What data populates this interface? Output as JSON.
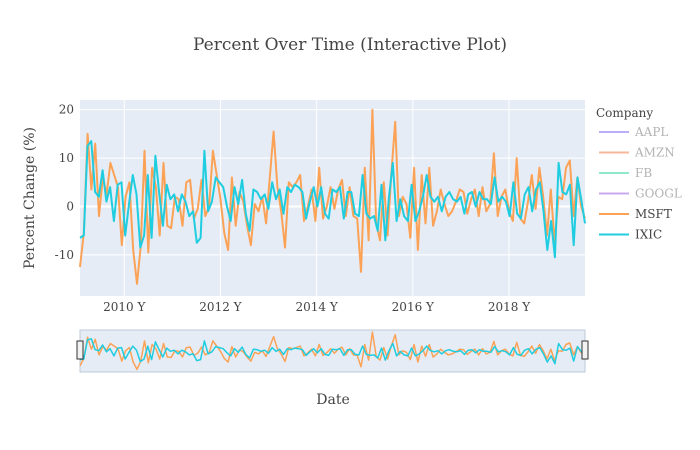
{
  "chart_data": {
    "type": "line",
    "title": "Percent Over Time (Interactive Plot)",
    "xlabel": "Date",
    "ylabel": "Percent Change (%)",
    "x_ticks": [
      "2010 Y",
      "2012 Y",
      "2014 Y",
      "2016 Y",
      "2018 Y"
    ],
    "x_tick_values": [
      2010,
      2012,
      2014,
      2016,
      2018
    ],
    "xlim": [
      2009.08,
      2019.58
    ],
    "y_ticks": [
      -10,
      0,
      10,
      20
    ],
    "ylim": [
      -18.5,
      22
    ],
    "legend": {
      "title": "Company",
      "position": "right",
      "items": [
        {
          "name": "AAPL",
          "color": "#b9aef7",
          "faded": true
        },
        {
          "name": "AMZN",
          "color": "#f7b79a",
          "faded": true
        },
        {
          "name": "FB",
          "color": "#8ee8c9",
          "faded": true
        },
        {
          "name": "GOOGL",
          "color": "#c9a8ee",
          "faded": true
        },
        {
          "name": "MSFT",
          "color": "#fca257",
          "faded": false
        },
        {
          "name": "IXIC",
          "color": "#1fcde0",
          "faded": false
        }
      ]
    },
    "series": [
      {
        "name": "MSFT",
        "color": "#fca257",
        "values": [
          -12.5,
          -5.5,
          15.0,
          3.5,
          13.0,
          -2.0,
          6.0,
          2.5,
          9.0,
          6.5,
          4.0,
          -8.0,
          2.0,
          5.0,
          -9.0,
          -16.0,
          -8.0,
          11.5,
          -9.5,
          8.0,
          4.0,
          -6.0,
          9.0,
          -4.0,
          -4.5,
          2.0,
          1.5,
          -4.0,
          5.0,
          5.5,
          -2.5,
          -0.5,
          5.5,
          -2.0,
          0.0,
          11.5,
          6.5,
          1.5,
          -5.5,
          -9.0,
          6.0,
          -4.0,
          3.0,
          1.0,
          -4.0,
          -8.0,
          0.5,
          -1.0,
          2.0,
          -3.5,
          6.0,
          15.5,
          4.0,
          -1.0,
          -8.5,
          5.0,
          4.0,
          5.0,
          6.5,
          -3.0,
          0.0,
          3.5,
          -3.0,
          8.0,
          -2.5,
          0.0,
          4.0,
          -0.5,
          3.5,
          5.5,
          -2.0,
          4.0,
          -2.0,
          -2.5,
          -13.5,
          8.0,
          -7.0,
          20.0,
          -3.5,
          -7.0,
          5.0,
          -6.0,
          7.0,
          17.5,
          -2.0,
          2.0,
          0.5,
          -6.5,
          8.0,
          -9.0,
          6.5,
          -3.5,
          8.0,
          -4.0,
          -1.0,
          3.5,
          0.5,
          -2.0,
          -1.0,
          1.0,
          3.5,
          3.0,
          -1.5,
          1.5,
          3.5,
          -2.0,
          4.0,
          -1.0,
          0.5,
          11.0,
          -2.0,
          2.0,
          3.5,
          -1.0,
          -3.0,
          10.0,
          -2.5,
          -3.5,
          1.0,
          6.5,
          -0.5,
          8.0,
          2.0,
          -6.0,
          3.5,
          -7.5,
          2.0,
          1.5,
          8.0,
          9.5,
          -2.0,
          6.0,
          0.0,
          -2.5
        ]
      },
      {
        "name": "IXIC",
        "color": "#1fcde0",
        "values": [
          -6.5,
          -6.0,
          12.5,
          13.5,
          3.0,
          2.0,
          7.5,
          1.0,
          4.0,
          -3.0,
          4.5,
          5.0,
          -6.0,
          0.5,
          6.5,
          2.5,
          -8.5,
          -6.0,
          6.5,
          -6.5,
          10.5,
          3.0,
          -4.0,
          4.5,
          1.5,
          2.5,
          -1.0,
          2.5,
          1.0,
          -2.0,
          -1.0,
          -7.5,
          -6.5,
          11.5,
          -1.0,
          1.0,
          6.0,
          5.0,
          4.0,
          0.0,
          -3.0,
          4.0,
          0.5,
          5.5,
          -1.5,
          -5.0,
          3.5,
          3.0,
          1.5,
          2.5,
          -0.5,
          5.0,
          1.5,
          3.5,
          -1.5,
          4.0,
          3.0,
          4.5,
          4.0,
          3.0,
          -2.5,
          1.0,
          4.0,
          0.0,
          4.0,
          -1.5,
          -2.5,
          3.5,
          3.0,
          4.0,
          -2.5,
          3.0,
          3.0,
          -1.5,
          -2.0,
          6.5,
          -1.5,
          -2.5,
          -2.0,
          -5.0,
          4.5,
          -7.0,
          2.0,
          9.0,
          -3.0,
          1.5,
          -2.0,
          -3.0,
          4.5,
          -3.0,
          -1.0,
          2.0,
          6.5,
          2.0,
          1.0,
          2.0,
          -1.0,
          2.0,
          3.0,
          1.5,
          1.0,
          2.0,
          -1.5,
          2.5,
          3.0,
          0.0,
          3.0,
          1.5,
          1.5,
          0.5,
          6.0,
          1.0,
          2.0,
          1.0,
          -2.0,
          5.0,
          -1.5,
          -2.5,
          2.5,
          4.0,
          -1.0,
          3.5,
          5.0,
          -1.0,
          -9.0,
          -3.0,
          -10.5,
          9.0,
          3.0,
          2.5,
          4.5,
          -8.0,
          6.0,
          1.5,
          -3.5
        ]
      }
    ]
  }
}
